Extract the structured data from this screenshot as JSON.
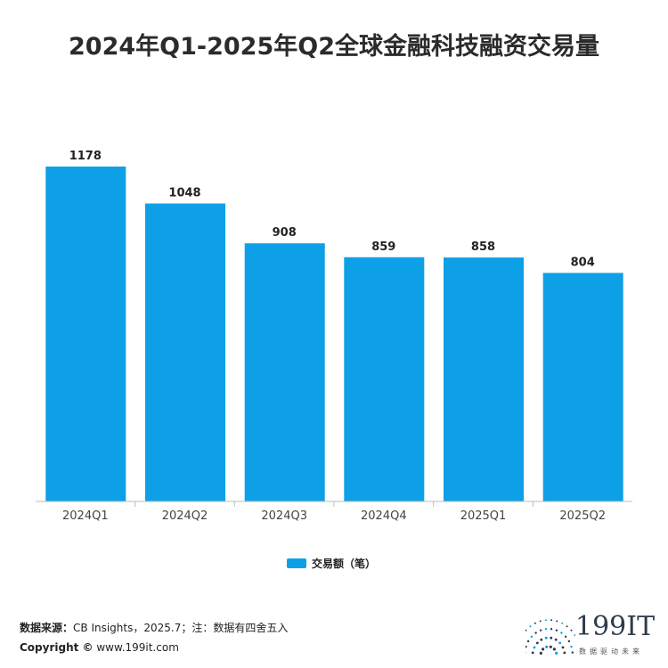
{
  "title": "2024年Q1-2025年Q2全球金融科技融资交易量",
  "chart_data": {
    "type": "bar",
    "title": "2024年Q1-2025年Q2全球金融科技融资交易量",
    "categories": [
      "2024Q1",
      "2024Q2",
      "2024Q3",
      "2024Q4",
      "2025Q1",
      "2025Q2"
    ],
    "series": [
      {
        "name": "交易额（笔）",
        "values": [
          1178,
          1048,
          908,
          859,
          858,
          804
        ],
        "color": "#0ea0e6"
      }
    ],
    "xlabel": "",
    "ylabel": "",
    "ylim": [
      0,
      1178
    ],
    "grid": false,
    "legend_position": "bottom"
  },
  "footer": {
    "source_label": "数据来源：",
    "source_text": "CB Insights，2025.7；注：数据有四舍五入",
    "copyright_label": "Copyright ©",
    "copyright_text": " www.199it.com"
  },
  "logo": {
    "name": "199IT",
    "tagline": "数据驱动未来",
    "icon": "dandelion-dots-icon",
    "colors": [
      "#2f3b4a",
      "#0ea0e6"
    ]
  }
}
